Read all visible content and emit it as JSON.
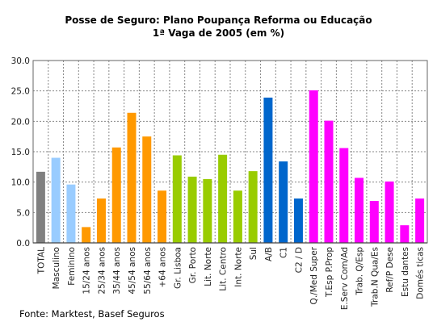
{
  "chart_data": {
    "type": "bar",
    "title": "Posse de Seguro: Plano Poupança Reforma ou Educação",
    "subtitle": "1ª Vaga de 2005 (em %)",
    "xlabel": "",
    "ylabel": "",
    "ylim": [
      0,
      30
    ],
    "yticks": [
      "0.0",
      "5.0",
      "10.0",
      "15.0",
      "20.0",
      "25.0",
      "30.0"
    ],
    "grid": true,
    "categories": [
      "TOTAL",
      "Masculino",
      "Feminino",
      "15/24 anos",
      "25/34 anos",
      "35/44 anos",
      "45/54 anos",
      "55/64 anos",
      "+64 anos",
      "Gr. Lisboa",
      "Gr. Porto",
      "Lit. Norte",
      "Lit. Centro",
      "Int. Norte",
      "Sul",
      "A/B",
      "C1",
      "C2 / D",
      "Q./Med Super",
      "T.Esp P.Prop",
      "E.Serv Com/Ad",
      "Trab. Q/Esp",
      "Trab.N Qua/Es",
      "Ref/P Dese",
      "Estu dantes",
      "Domés ticas"
    ],
    "values": [
      11.7,
      14.0,
      9.6,
      2.6,
      7.3,
      15.7,
      21.4,
      17.5,
      8.6,
      14.4,
      10.9,
      10.5,
      14.5,
      8.6,
      11.8,
      23.9,
      13.4,
      7.3,
      25.1,
      20.1,
      15.6,
      10.7,
      6.9,
      10.1,
      2.9,
      7.3
    ],
    "colors": [
      "#808080",
      "#99ccff",
      "#99ccff",
      "#ff9900",
      "#ff9900",
      "#ff9900",
      "#ff9900",
      "#ff9900",
      "#ff9900",
      "#99cc00",
      "#99cc00",
      "#99cc00",
      "#99cc00",
      "#99cc00",
      "#99cc00",
      "#0066cc",
      "#0066cc",
      "#0066cc",
      "#ff00ff",
      "#ff00ff",
      "#ff00ff",
      "#ff00ff",
      "#ff00ff",
      "#ff00ff",
      "#ff00ff",
      "#ff00ff"
    ],
    "source": "Fonte: Marktest, Basef Seguros"
  }
}
